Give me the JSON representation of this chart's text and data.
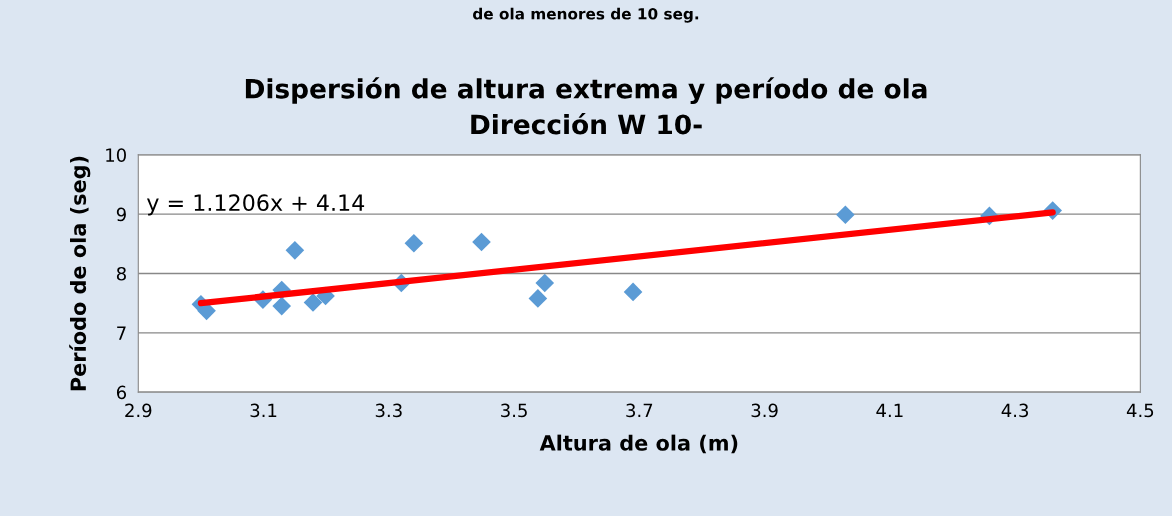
{
  "chart_data": {
    "type": "scatter",
    "title": "Dispersión de altura extrema y período de ola\nDirección W 10-",
    "xlabel": "Altura de ola (m)",
    "ylabel": "Período de ola (seg)",
    "annotations": [
      "de ola menores de 10 seg.",
      "y = 1.1206x + 4.14"
    ],
    "xlim": [
      2.9,
      4.5
    ],
    "xticks": [
      2.9,
      3.1,
      3.3,
      3.5,
      3.7,
      3.9,
      4.1,
      4.3,
      4.5
    ],
    "ylim": [
      6,
      10
    ],
    "yticks": [
      6,
      7,
      8,
      9,
      10
    ],
    "grid": "y",
    "marker": "diamond",
    "series": [
      {
        "color": "#5b9bd5",
        "x": [
          3.0,
          3.009,
          3.099,
          3.129,
          3.129,
          3.15,
          3.179,
          3.199,
          3.32,
          3.34,
          3.448,
          3.538,
          3.549,
          3.69,
          4.029,
          4.259,
          4.36
        ],
        "values": [
          7.48,
          7.37,
          7.56,
          7.72,
          7.45,
          8.39,
          7.51,
          7.62,
          7.84,
          8.51,
          8.53,
          7.58,
          7.84,
          7.69,
          8.99,
          8.97,
          9.06
        ]
      },
      {
        "type": "line",
        "color": "#ff0000",
        "marker": "none",
        "line_style": "solid",
        "x": [
          3.0,
          4.36
        ],
        "values": [
          7.5,
          9.03
        ]
      }
    ]
  }
}
